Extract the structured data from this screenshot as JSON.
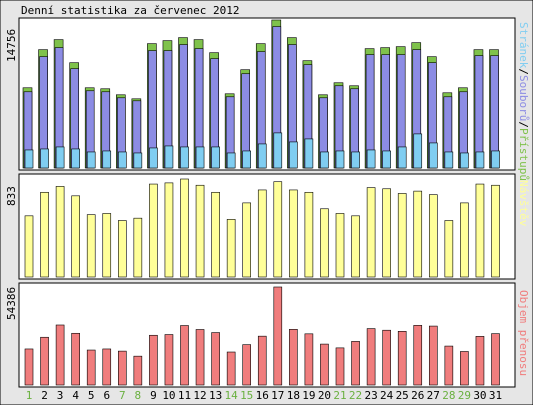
{
  "title": "Denní statistika za červenec 2012",
  "colors": {
    "background": "#e6e6e6",
    "panel": "#ffffff",
    "hits": "#7fc24b",
    "files": "#8c8ce4",
    "pages": "#80cdf1",
    "visits": "#ffff99",
    "kbytes": "#f07d7d",
    "weekend_label": "#6ab040",
    "weekday_label": "#000000"
  },
  "legends": {
    "top": [
      {
        "text": "Stránek",
        "color": "#80cdf1"
      },
      {
        "text": "/",
        "color": "#000000"
      },
      {
        "text": "Souborů",
        "color": "#8c8ce4"
      },
      {
        "text": "/",
        "color": "#000000"
      },
      {
        "text": "Přístupů",
        "color": "#7fc24b"
      }
    ],
    "middle": "Návštěv",
    "bottom": "Objem přenosu"
  },
  "chart_data": [
    {
      "type": "bar",
      "panel": "top",
      "ymax_label": "14756",
      "ylim": [
        0,
        14756
      ],
      "categories": [
        "1",
        "2",
        "3",
        "4",
        "5",
        "6",
        "7",
        "8",
        "9",
        "10",
        "11",
        "12",
        "13",
        "14",
        "15",
        "16",
        "17",
        "18",
        "19",
        "20",
        "21",
        "22",
        "23",
        "24",
        "25",
        "26",
        "27",
        "28",
        "29",
        "30",
        "31"
      ],
      "series": [
        {
          "name": "Přístupů",
          "values": [
            8000,
            11800,
            12800,
            10500,
            8000,
            7900,
            7300,
            6900,
            12400,
            12700,
            13000,
            12800,
            11500,
            7400,
            9800,
            12400,
            14756,
            13000,
            10700,
            7300,
            8500,
            8200,
            11900,
            12000,
            12100,
            12500,
            11100,
            7500,
            8000,
            11800,
            11800
          ]
        },
        {
          "name": "Souborů",
          "values": [
            7600,
            11100,
            12000,
            9900,
            7700,
            7600,
            7000,
            6700,
            11700,
            11700,
            12300,
            11900,
            10900,
            7100,
            9400,
            11600,
            14100,
            12300,
            10300,
            7000,
            8200,
            7900,
            11300,
            11300,
            11300,
            11800,
            10500,
            7100,
            7600,
            11200,
            11200
          ]
        },
        {
          "name": "Stránek",
          "values": [
            1800,
            1900,
            2100,
            1900,
            1600,
            1700,
            1600,
            1500,
            2000,
            2200,
            2100,
            2100,
            2100,
            1500,
            1700,
            2400,
            3500,
            2600,
            2900,
            1600,
            1700,
            1600,
            1800,
            1700,
            2100,
            3400,
            2500,
            1600,
            1500,
            1600,
            1700
          ]
        }
      ]
    },
    {
      "type": "bar",
      "panel": "middle",
      "ymax_label": "833",
      "ylim": [
        0,
        833
      ],
      "categories": [
        "1",
        "2",
        "3",
        "4",
        "5",
        "6",
        "7",
        "8",
        "9",
        "10",
        "11",
        "12",
        "13",
        "14",
        "15",
        "16",
        "17",
        "18",
        "19",
        "20",
        "21",
        "22",
        "23",
        "24",
        "25",
        "26",
        "27",
        "28",
        "29",
        "30",
        "31"
      ],
      "series": [
        {
          "name": "Návštěv",
          "values": [
            520,
            720,
            770,
            690,
            530,
            540,
            480,
            500,
            790,
            800,
            833,
            780,
            720,
            490,
            630,
            740,
            810,
            740,
            720,
            580,
            540,
            520,
            760,
            750,
            710,
            730,
            700,
            480,
            630,
            790,
            780
          ]
        }
      ]
    },
    {
      "type": "bar",
      "panel": "bottom",
      "ymax_label": "54386",
      "ylim": [
        0,
        54386
      ],
      "categories": [
        "1",
        "2",
        "3",
        "4",
        "5",
        "6",
        "7",
        "8",
        "9",
        "10",
        "11",
        "12",
        "13",
        "14",
        "15",
        "16",
        "17",
        "18",
        "19",
        "20",
        "21",
        "22",
        "23",
        "24",
        "25",
        "26",
        "27",
        "28",
        "29",
        "30",
        "31"
      ],
      "series": [
        {
          "name": "Objem přenosu",
          "values": [
            20000,
            26500,
            33300,
            28700,
            19400,
            20000,
            18800,
            16000,
            27600,
            28000,
            33000,
            30800,
            29100,
            18300,
            22400,
            27100,
            54386,
            30900,
            28400,
            22700,
            20600,
            24200,
            31300,
            30400,
            29800,
            33100,
            32700,
            21600,
            18600,
            27000,
            28500
          ]
        }
      ]
    }
  ],
  "day_labels": [
    {
      "text": "1",
      "weekend": true
    },
    {
      "text": "2",
      "weekend": false
    },
    {
      "text": "3",
      "weekend": false
    },
    {
      "text": "4",
      "weekend": false
    },
    {
      "text": "5",
      "weekend": false
    },
    {
      "text": "6",
      "weekend": false
    },
    {
      "text": "7",
      "weekend": true
    },
    {
      "text": "8",
      "weekend": true
    },
    {
      "text": "9",
      "weekend": false
    },
    {
      "text": "10",
      "weekend": false
    },
    {
      "text": "11",
      "weekend": false
    },
    {
      "text": "12",
      "weekend": false
    },
    {
      "text": "13",
      "weekend": false
    },
    {
      "text": "14",
      "weekend": true
    },
    {
      "text": "15",
      "weekend": true
    },
    {
      "text": "16",
      "weekend": false
    },
    {
      "text": "17",
      "weekend": false
    },
    {
      "text": "18",
      "weekend": false
    },
    {
      "text": "19",
      "weekend": false
    },
    {
      "text": "20",
      "weekend": false
    },
    {
      "text": "21",
      "weekend": true
    },
    {
      "text": "22",
      "weekend": true
    },
    {
      "text": "23",
      "weekend": false
    },
    {
      "text": "24",
      "weekend": false
    },
    {
      "text": "25",
      "weekend": false
    },
    {
      "text": "26",
      "weekend": false
    },
    {
      "text": "27",
      "weekend": false
    },
    {
      "text": "28",
      "weekend": true
    },
    {
      "text": "29",
      "weekend": true
    },
    {
      "text": "30",
      "weekend": false
    },
    {
      "text": "31",
      "weekend": false
    }
  ]
}
